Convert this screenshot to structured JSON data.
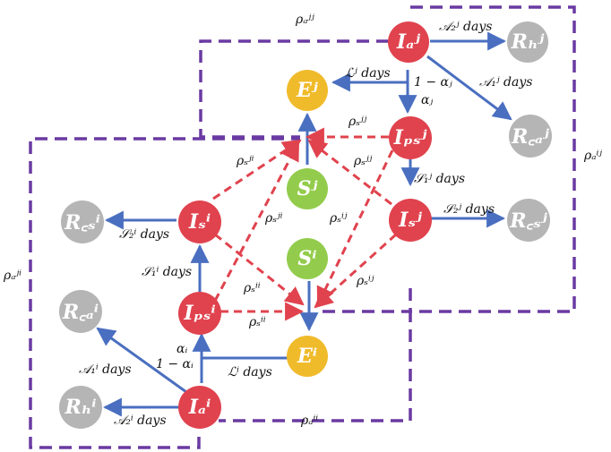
{
  "colors": {
    "infected": "#e0434e",
    "recovered": "#b5b5b5",
    "susceptible": "#93cc4c",
    "exposed": "#f0bb2b",
    "progression_arrow": "#4a6fc0",
    "infection_arrow": "#e0434e",
    "region_border": "#6a3aa2"
  },
  "nodes": {
    "Ia_j": "Iₐʲ",
    "Rh_j": "Rₕʲ",
    "Ej": "Eʲ",
    "Rca_j": "R꜀ₐʲ",
    "Ips_j": "Iₚₛʲ",
    "Sj": "Sʲ",
    "Rcs_i": "R꜀ₛⁱ",
    "Is_i": "Iₛⁱ",
    "Is_j": "Iₛʲ",
    "Rcs_j": "R꜀ₛʲ",
    "Si": "Sⁱ",
    "Rca_i": "R꜀ₐⁱ",
    "Ips_i": "Iₚₛⁱ",
    "Ei": "Eⁱ",
    "Rh_i": "Rₕⁱ",
    "Ia_i": "Iₐⁱ"
  },
  "labels": {
    "rho_a_jj": "ρₐʲʲ",
    "A2_j": "𝒜₂ʲ days",
    "A1_j": "𝒜₁ʲ days",
    "L_j": "ℒʲ days",
    "one_minus_alpha_j": "1 − αⱼ",
    "alpha_j": "αⱼ",
    "rho_s_jj": "ρₛʲʲ",
    "rho_s_ji_upper": "ρₛʲⁱ",
    "rho_s_jj_lower": "ρₛʲʲ",
    "rho_a_ij": "ρₐⁱʲ",
    "S1_j": "𝒮₁ʲ days",
    "S2_j": "𝒮₂ʲ days",
    "S2_i": "𝒮₂ⁱ days",
    "rho_s_ji_mid": "ρₛʲⁱ",
    "rho_s_ij_mid": "ρₛⁱʲ",
    "rho_a_ji": "ρₐʲⁱ",
    "S1_i": "𝒮₁ⁱ days",
    "rho_s_ii_upper": "ρₛⁱⁱ",
    "rho_s_ij_lower": "ρₛⁱʲ",
    "rho_s_ii_lower": "ρₛⁱⁱ",
    "alpha_i": "αᵢ",
    "one_minus_alpha_i": "1 − αᵢ",
    "A1_i": "𝒜₁ⁱ days",
    "L_i": "ℒⁱ days",
    "A2_i": "𝒜₂ⁱ days",
    "rho_a_ii": "ρₐⁱⁱ"
  }
}
